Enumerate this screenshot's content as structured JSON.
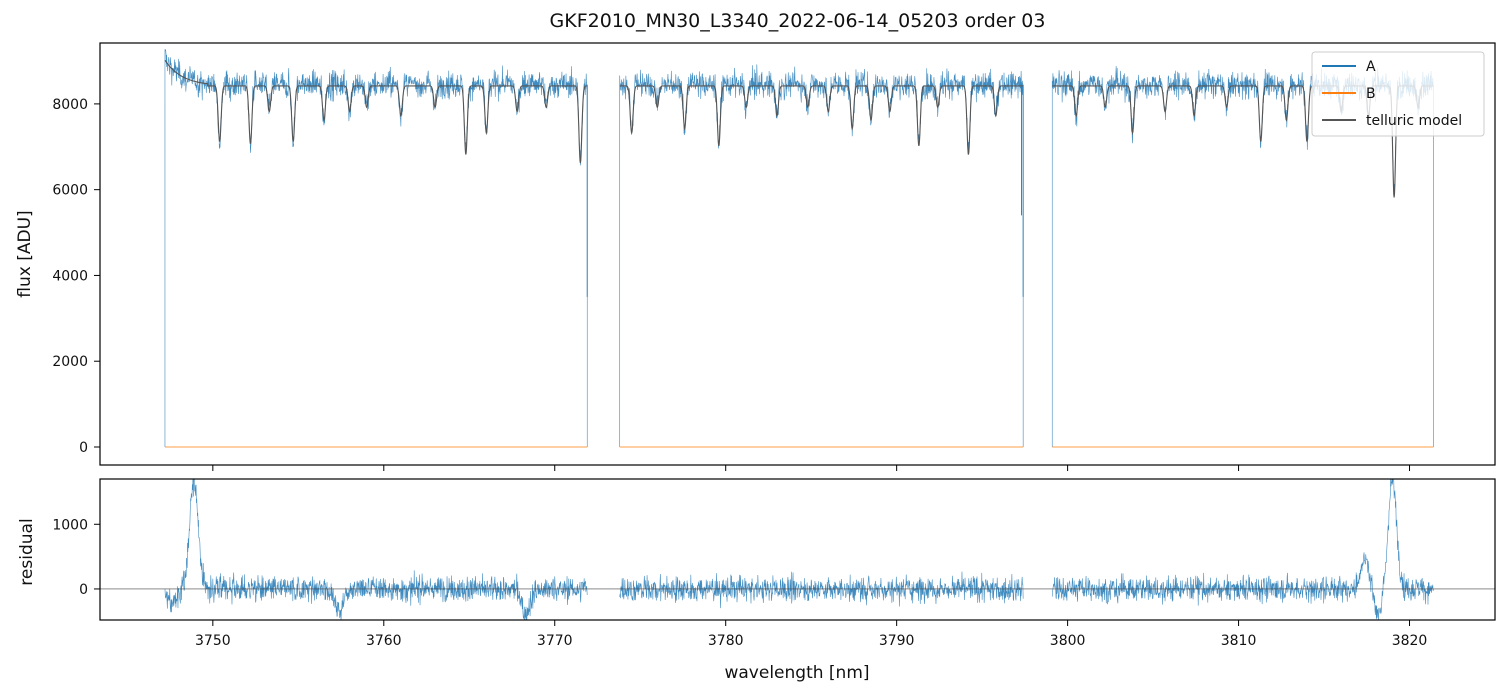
{
  "chart_data": [
    {
      "type": "line",
      "title": "GKF2010_MN30_L3340_2022-06-14_05203  order 03",
      "xlabel": "",
      "ylabel": "flux [ADU]",
      "xlim": [
        3743.4,
        3825.0
      ],
      "ylim": [
        -420,
        9420
      ],
      "xticks": [
        3750,
        3760,
        3770,
        3780,
        3790,
        3800,
        3810,
        3820
      ],
      "yticks": [
        0,
        2000,
        4000,
        6000,
        8000
      ],
      "ytick_labels": [
        "0",
        "2000",
        "4000",
        "6000",
        "8000"
      ],
      "legend": {
        "position": "top-right",
        "entries": [
          "A",
          "B",
          "telluric model"
        ]
      },
      "segments": [
        [
          3747.2,
          3771.9
        ],
        [
          3773.8,
          3797.4
        ],
        [
          3799.1,
          3821.4
        ]
      ],
      "series": [
        {
          "name": "A",
          "color": "#1f77b4",
          "continuum": 8450,
          "noise": 160,
          "edge_value": 9100,
          "drop_value": 0
        },
        {
          "name": "B",
          "color": "#ff7f0e",
          "values": 0
        },
        {
          "name": "telluric model",
          "color": "#555555",
          "continuum": 8420
        }
      ],
      "absorption_lines": [
        {
          "x": 3750.4,
          "depth": 1300
        },
        {
          "x": 3752.2,
          "depth": 1350
        },
        {
          "x": 3753.3,
          "depth": 600
        },
        {
          "x": 3754.7,
          "depth": 1300
        },
        {
          "x": 3756.5,
          "depth": 800
        },
        {
          "x": 3758.0,
          "depth": 600
        },
        {
          "x": 3759.0,
          "depth": 500
        },
        {
          "x": 3761.0,
          "depth": 700
        },
        {
          "x": 3763.0,
          "depth": 500
        },
        {
          "x": 3764.8,
          "depth": 1600
        },
        {
          "x": 3766.0,
          "depth": 1100
        },
        {
          "x": 3767.8,
          "depth": 600
        },
        {
          "x": 3769.5,
          "depth": 500
        },
        {
          "x": 3771.5,
          "depth": 1800
        },
        {
          "x": 3774.5,
          "depth": 1100
        },
        {
          "x": 3776.0,
          "depth": 500
        },
        {
          "x": 3777.6,
          "depth": 1000
        },
        {
          "x": 3779.6,
          "depth": 1400
        },
        {
          "x": 3781.2,
          "depth": 500
        },
        {
          "x": 3783.0,
          "depth": 700
        },
        {
          "x": 3784.8,
          "depth": 500
        },
        {
          "x": 3786.0,
          "depth": 600
        },
        {
          "x": 3787.4,
          "depth": 1000
        },
        {
          "x": 3788.5,
          "depth": 800
        },
        {
          "x": 3789.6,
          "depth": 600
        },
        {
          "x": 3791.3,
          "depth": 1400
        },
        {
          "x": 3792.4,
          "depth": 500
        },
        {
          "x": 3794.2,
          "depth": 1600
        },
        {
          "x": 3795.8,
          "depth": 700
        },
        {
          "x": 3800.5,
          "depth": 700
        },
        {
          "x": 3802.2,
          "depth": 500
        },
        {
          "x": 3803.8,
          "depth": 1100
        },
        {
          "x": 3805.7,
          "depth": 600
        },
        {
          "x": 3807.4,
          "depth": 700
        },
        {
          "x": 3809.3,
          "depth": 500
        },
        {
          "x": 3811.3,
          "depth": 1300
        },
        {
          "x": 3812.8,
          "depth": 800
        },
        {
          "x": 3814.0,
          "depth": 1300
        },
        {
          "x": 3816.0,
          "depth": 600
        },
        {
          "x": 3817.6,
          "depth": 700
        },
        {
          "x": 3819.1,
          "depth": 2600
        },
        {
          "x": 3820.5,
          "depth": 500
        }
      ],
      "spikes": [
        {
          "x": 3771.9,
          "value": 3500
        },
        {
          "x": 3797.4,
          "value": 3500
        },
        {
          "x": 3797.3,
          "value": 5400
        }
      ]
    },
    {
      "type": "line",
      "title": "",
      "xlabel": "wavelength [nm]",
      "ylabel": "residual",
      "xlim": [
        3743.4,
        3825.0
      ],
      "ylim": [
        -480,
        1700
      ],
      "xticks": [
        3750,
        3760,
        3770,
        3780,
        3790,
        3800,
        3810,
        3820
      ],
      "xtick_labels": [
        "3750",
        "3760",
        "3770",
        "3780",
        "3790",
        "3800",
        "3810",
        "3820"
      ],
      "yticks": [
        0,
        1000
      ],
      "ytick_labels": [
        "0",
        "1000"
      ],
      "zero_line": true,
      "series": [
        {
          "color": "#1f77b4",
          "noise": 100,
          "features": [
            {
              "x": 3748.9,
              "value": 1700
            },
            {
              "x": 3747.6,
              "value": -250
            },
            {
              "x": 3757.4,
              "value": -350
            },
            {
              "x": 3768.3,
              "value": -380
            },
            {
              "x": 3817.4,
              "value": 450
            },
            {
              "x": 3819.0,
              "value": 1700
            },
            {
              "x": 3818.2,
              "value": -350
            }
          ]
        }
      ]
    }
  ]
}
